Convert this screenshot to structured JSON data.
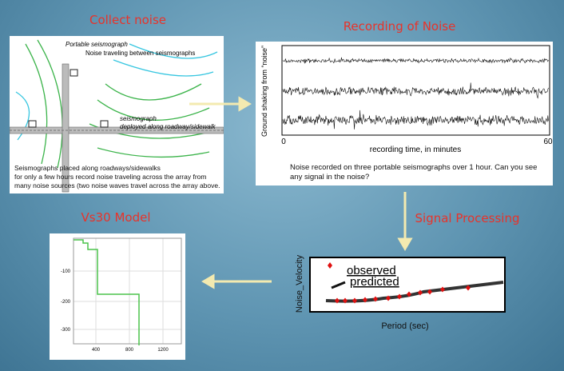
{
  "steps": [
    {
      "title": "Collect noise",
      "labels": {
        "portable": "Portable seismograph",
        "traveling": "Noise traveling between seismographs",
        "seismograph": "seismograph",
        "deployed": "deployed along roadway/sidewalk"
      },
      "caption": [
        "Seismographs placed along roadways/sidewalks",
        "for only a few hours record noise traveling across the array from",
        "many noise sources (two noise waves travel across the array above."
      ]
    },
    {
      "title": "Recording of Noise",
      "ylabel": "Ground shaking from “noise”",
      "xticks": [
        "0",
        "60"
      ],
      "xlabel": "recording time, in minutes",
      "caption": [
        "Noise recorded on three portable seismographs over 1 hour.  Can you see",
        "any signal in the noise?"
      ]
    },
    {
      "title": "Signal Processing",
      "ylabel": "Noise_Velocity",
      "legend": [
        "observed",
        "predicted"
      ],
      "xlabel": "Period (sec)"
    },
    {
      "title": "Vs30 Model",
      "yticks": [
        "-100",
        "-200",
        "-300"
      ],
      "xticks": [
        "400",
        "800",
        "1200"
      ]
    }
  ]
}
